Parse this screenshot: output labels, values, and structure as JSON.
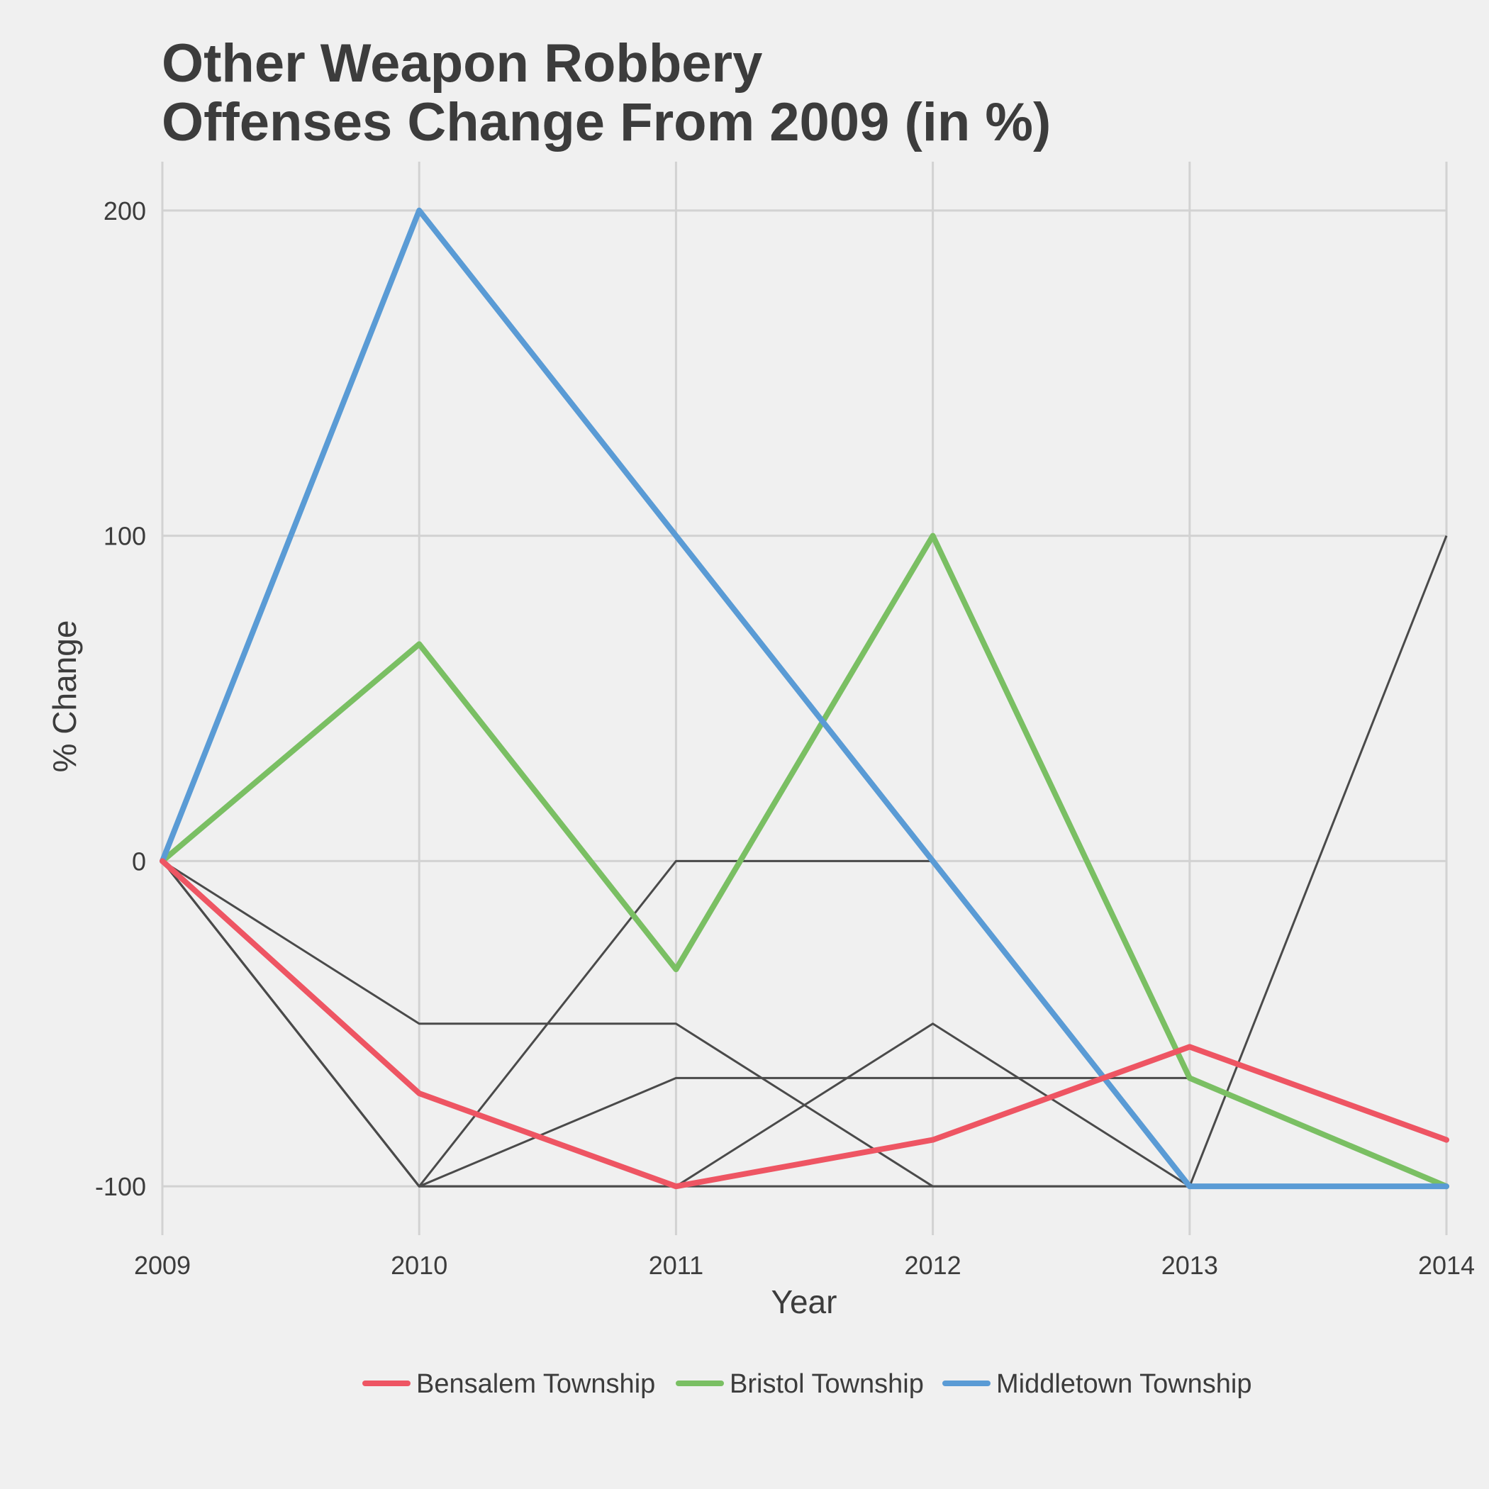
{
  "chart_data": {
    "type": "line",
    "title": [
      "Other Weapon Robbery",
      "Offenses Change From 2009 (in %)"
    ],
    "xlabel": "Year",
    "ylabel": "% Change",
    "x": [
      2009,
      2010,
      2011,
      2012,
      2013,
      2014
    ],
    "x_tick_labels": [
      "2009",
      "2010",
      "2011",
      "2012",
      "2013",
      "2014"
    ],
    "y_ticks": [
      -100,
      0,
      100,
      200
    ],
    "y_tick_labels": [
      "-100",
      "0",
      "100",
      "200"
    ],
    "ylim": [
      -115,
      215
    ],
    "xlim": [
      2009,
      2014
    ],
    "grid": true,
    "legend_position": "bottom",
    "highlighted_series": [
      {
        "name": "Bensalem Township",
        "color": "#ee5563",
        "values": [
          0,
          -71.4,
          -100,
          -85.7,
          -57.1,
          -85.7
        ]
      },
      {
        "name": "Bristol Township",
        "color": "#7abf63",
        "values": [
          0,
          66.7,
          -33.3,
          100,
          -66.7,
          -100
        ]
      },
      {
        "name": "Middletown Township",
        "color": "#5a9bd5",
        "values": [
          0,
          200,
          100,
          0,
          -100,
          -100
        ]
      }
    ],
    "background_series_color": "#4a4a4a",
    "background_series": [
      {
        "values": [
          0,
          -50,
          -50,
          -100,
          -100,
          null
        ]
      },
      {
        "values": [
          0,
          -100,
          0,
          0,
          null,
          null
        ]
      },
      {
        "values": [
          0,
          -100,
          -66.7,
          -66.7,
          -66.7,
          null
        ]
      },
      {
        "values": [
          0,
          -100,
          -100,
          -50,
          -100,
          null
        ]
      },
      {
        "values": [
          0,
          -100,
          -100,
          -100,
          -100,
          100
        ]
      }
    ]
  }
}
